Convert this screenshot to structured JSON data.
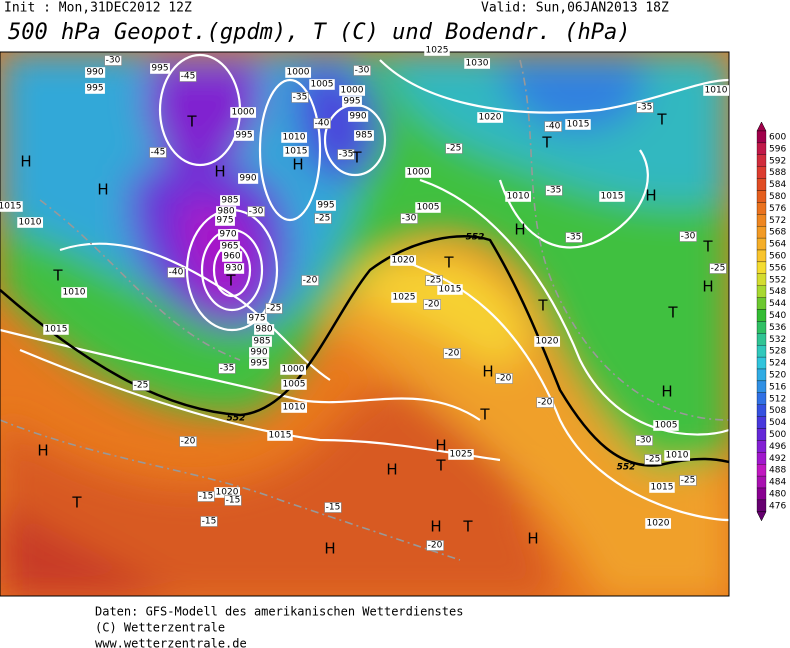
{
  "header": {
    "init": "Init : Mon,31DEC2012  12Z",
    "valid": "Valid: Sun,06JAN2013  18Z",
    "title": "500 hPa Geopot.(gpdm), T (C) und Bodendr. (hPa)"
  },
  "colorbar": {
    "levels": [
      "600",
      "596",
      "592",
      "588",
      "584",
      "580",
      "576",
      "572",
      "568",
      "564",
      "560",
      "556",
      "552",
      "548",
      "544",
      "540",
      "536",
      "532",
      "528",
      "524",
      "520",
      "516",
      "512",
      "508",
      "504",
      "500",
      "496",
      "492",
      "488",
      "484",
      "480",
      "476"
    ],
    "colors": [
      "#a0004a",
      "#c01848",
      "#d02c3c",
      "#dc3c30",
      "#e04c24",
      "#e45e1e",
      "#ea721e",
      "#ee8620",
      "#f29a24",
      "#f5ae28",
      "#f8c42c",
      "#f4dc30",
      "#d4dc30",
      "#a8d830",
      "#6cc830",
      "#34bc34",
      "#30c064",
      "#30c494",
      "#30c8bc",
      "#30c4dc",
      "#30ace4",
      "#3090e4",
      "#3070e4",
      "#3450e0",
      "#4838dc",
      "#6428d8",
      "#8420d4",
      "#a018cc",
      "#c018c0",
      "#a810b0",
      "#880090",
      "#660070"
    ]
  },
  "map": {
    "isobar_labels": [
      "990",
      "995",
      "995",
      "1000",
      "1005",
      "1000",
      "995",
      "990",
      "985",
      "1000",
      "995",
      "1010",
      "1015",
      "990",
      "985",
      "980",
      "975",
      "970",
      "965",
      "960",
      "930",
      "975",
      "980",
      "985",
      "990",
      "995",
      "1000",
      "1005",
      "1010",
      "1015",
      "1020",
      "1025",
      "1030",
      "1020",
      "1015",
      "1000",
      "1005",
      "1010",
      "1010",
      "1015",
      "1020",
      "1025",
      "1015",
      "1020",
      "1015",
      "1025",
      "1010",
      "1005",
      "1015",
      "1020",
      "1010",
      "995",
      "1015",
      "1010"
    ],
    "temperature_labels": [
      "-30",
      "-45",
      "-35",
      "-40",
      "-45",
      "-35",
      "-30",
      "-25",
      "-40",
      "-25",
      "-20",
      "-35",
      "-25",
      "-20",
      "-15",
      "-15",
      "-15",
      "-15",
      "-20",
      "-25",
      "-30",
      "-25",
      "-20",
      "-20",
      "-20",
      "-20",
      "-30",
      "-25",
      "-25",
      "-30",
      "-25",
      "-35",
      "-35",
      "-40",
      "-35",
      "-30"
    ],
    "centers": [
      "H",
      "H",
      "T",
      "T",
      "H",
      "H",
      "T",
      "T",
      "T",
      "T",
      "H",
      "T",
      "H",
      "T",
      "T",
      "H",
      "T",
      "H",
      "T",
      "H",
      "T",
      "H",
      "H",
      "T",
      "H",
      "H",
      "H",
      "T",
      "H"
    ],
    "contour_labels": [
      "552",
      "552",
      "552"
    ]
  },
  "footer": {
    "line1": "Daten: GFS-Modell des amerikanischen Wetterdienstes",
    "line2": "(C) Wetterzentrale",
    "line3": "www.wetterzentrale.de"
  }
}
